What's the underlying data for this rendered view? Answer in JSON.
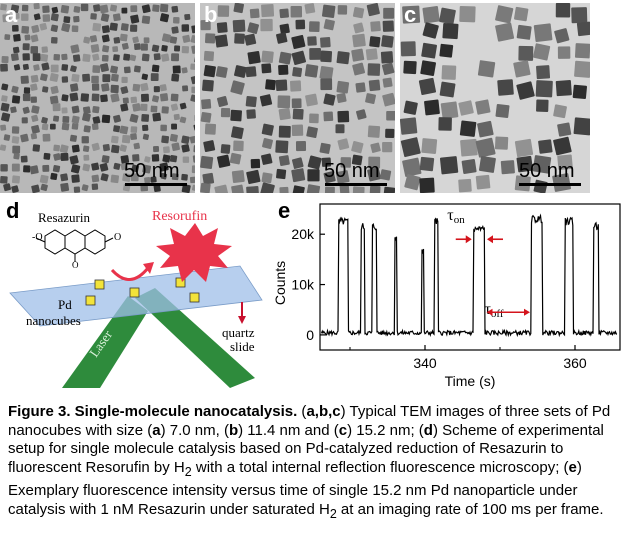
{
  "panels": {
    "a": {
      "label": "a",
      "scale": "50 nm"
    },
    "b": {
      "label": "b",
      "scale": "50 nm"
    },
    "c": {
      "label": "c",
      "scale": "50 nm"
    },
    "d": {
      "label": "d"
    },
    "e": {
      "label": "e"
    }
  },
  "scheme": {
    "resazurin": "Resazurin",
    "resorufin": "Resorufin",
    "pd_line1": "Pd",
    "pd_line2": "nanocubes",
    "laser": "Laser",
    "quartz_line1": "quartz",
    "quartz_line2": "slide"
  },
  "chart_data": {
    "type": "line",
    "xlabel": "Time (s)",
    "ylabel": "Counts",
    "x_ticks": [
      "340",
      "360"
    ],
    "y_ticks": [
      "0",
      "10k",
      "20k"
    ],
    "xlim": [
      326,
      366
    ],
    "ylim": [
      -3000,
      26000
    ],
    "annotations": [
      "τon",
      "τoff"
    ],
    "on_bursts": [
      {
        "start": 328.5,
        "end": 329.8,
        "level": 22500
      },
      {
        "start": 331.5,
        "end": 332.0,
        "level": 21500
      },
      {
        "start": 333.0,
        "end": 333.6,
        "level": 21500
      },
      {
        "start": 336.0,
        "end": 336.3,
        "level": 19500
      },
      {
        "start": 339.6,
        "end": 339.9,
        "level": 16500
      },
      {
        "start": 341.3,
        "end": 341.8,
        "level": 22500
      },
      {
        "start": 346.5,
        "end": 348.0,
        "level": 21000
      },
      {
        "start": 354.2,
        "end": 355.7,
        "level": 23000
      },
      {
        "start": 358.7,
        "end": 359.8,
        "level": 22500
      },
      {
        "start": 362.5,
        "end": 363.2,
        "level": 21500
      }
    ]
  },
  "caption": {
    "title": "Figure 3. Single-molecule nanocatalysis.",
    "text1": " (",
    "abc": "a,b,c",
    "text2": ") Typical TEM images of three sets of Pd nanocubes with size (",
    "a": "a",
    "text3": ") 7.0 nm, (",
    "b": "b",
    "text4": ") 11.4 nm and (",
    "c": "c",
    "text5": ") 15.2 nm; (",
    "d": "d",
    "text6": ") Scheme of experimental setup for single molecule catalysis based on Pd-catalyzed reduction of Resazurin to fluorescent Resorufin by H",
    "sub1": "2",
    "text7": " with a total internal reflection fluorescence microscopy; (",
    "e": "e",
    "text8": ") Exemplary fluorescence intensity versus time of single 15.2 nm Pd nanoparticle under catalysis with 1 nM Resazurin under saturated H",
    "sub2": "2",
    "text9": " at an imaging rate of 100 ms per frame."
  }
}
